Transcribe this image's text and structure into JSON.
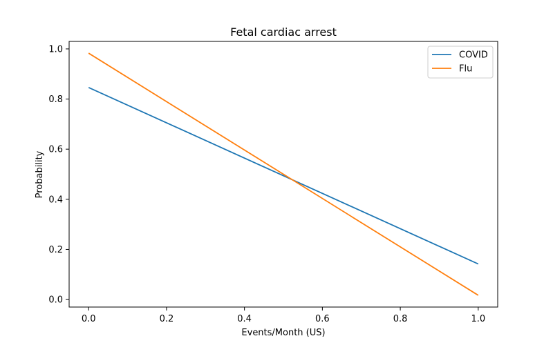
{
  "chart_data": {
    "type": "line",
    "title": "Fetal cardiac arrest",
    "xlabel": "Events/Month (US)",
    "ylabel": "Probability",
    "xlim": [
      -0.05,
      1.05
    ],
    "ylim": [
      -0.03,
      1.03
    ],
    "xticks": [
      0.0,
      0.2,
      0.4,
      0.6,
      0.8,
      1.0
    ],
    "xtick_labels": [
      "0.0",
      "0.2",
      "0.4",
      "0.6",
      "0.8",
      "1.0"
    ],
    "yticks": [
      0.0,
      0.2,
      0.4,
      0.6,
      0.8,
      1.0
    ],
    "ytick_labels": [
      "0.0",
      "0.2",
      "0.4",
      "0.6",
      "0.8",
      "1.0"
    ],
    "grid": false,
    "legend_position": "top-right",
    "series": [
      {
        "name": "COVID",
        "color": "#1f77b4",
        "x": [
          0.0,
          1.0
        ],
        "y": [
          0.846,
          0.142
        ]
      },
      {
        "name": "Flu",
        "color": "#ff7f0e",
        "x": [
          0.0,
          1.0
        ],
        "y": [
          0.983,
          0.017
        ]
      }
    ]
  }
}
